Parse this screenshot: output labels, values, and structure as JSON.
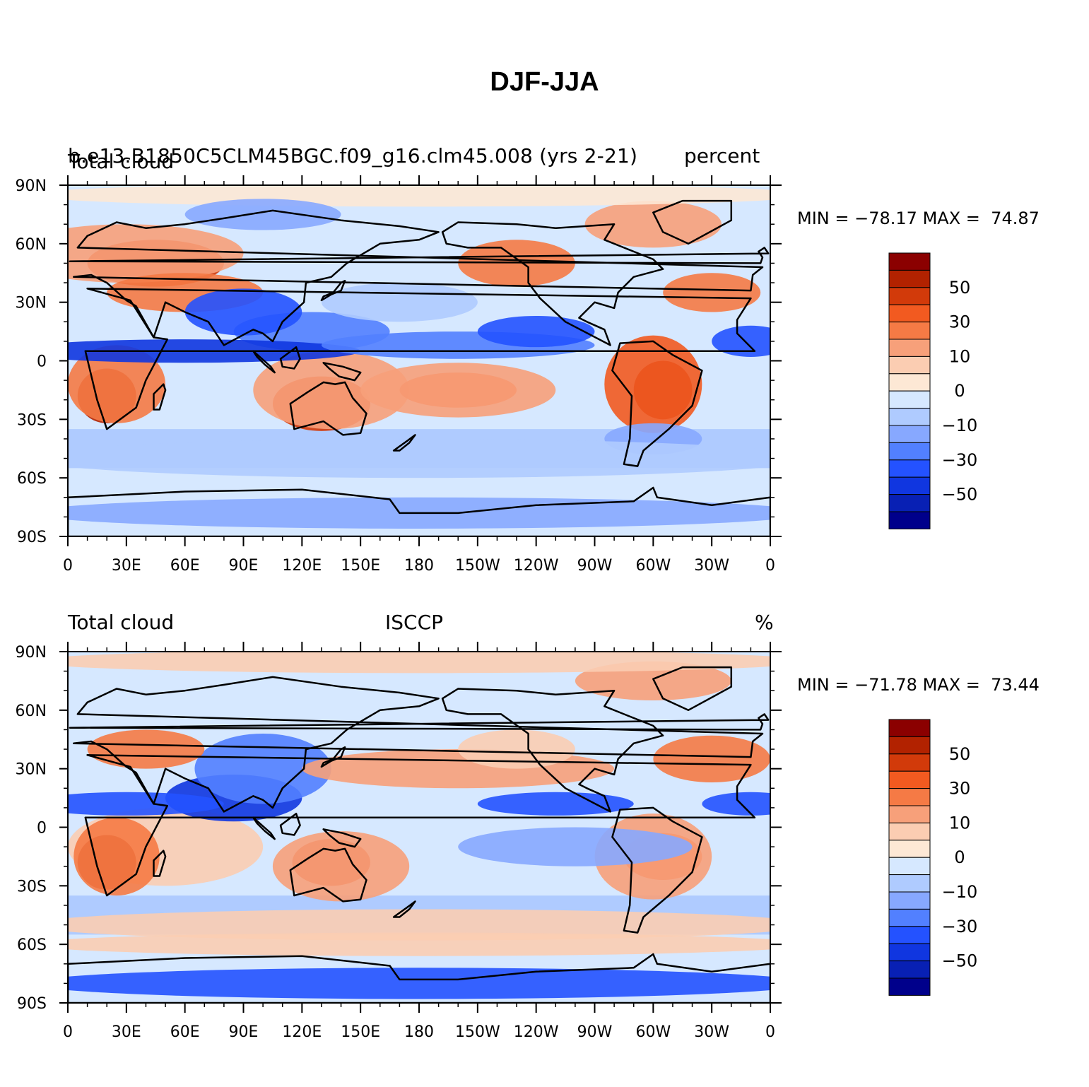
{
  "title": "DJF-JJA",
  "panels": [
    {
      "label_left": "Total cloud",
      "label_center": "b.e13.B1850C5CLM45BGC.f09_g16.clm45.008  (yrs   2-21)",
      "label_right": "percent",
      "min_label": "MIN =",
      "min_value": "−78.17",
      "max_label": "MAX =",
      "max_value": "74.87"
    },
    {
      "label_left": "Total cloud",
      "label_center": "ISCCP",
      "label_right": "%",
      "min_label": "MIN =",
      "min_value": "−71.78",
      "max_label": "MAX =",
      "max_value": "73.44"
    }
  ],
  "map": {
    "lat_ticks": [
      "90N",
      "60N",
      "30N",
      "0",
      "30S",
      "60S",
      "90S"
    ],
    "lon_ticks": [
      "0",
      "30E",
      "60E",
      "90E",
      "120E",
      "150E",
      "180",
      "150W",
      "120W",
      "90W",
      "60W",
      "30W",
      "0"
    ]
  },
  "colorbar": {
    "labels": [
      "50",
      "30",
      "10",
      "0",
      "−10",
      "−30",
      "−50"
    ],
    "colors": [
      "#8b0000",
      "#b22200",
      "#d23a0a",
      "#f25a20",
      "#f57a45",
      "#f7a07a",
      "#fbcdb2",
      "#fde8d5",
      "#d6e8ff",
      "#afcbff",
      "#87a8ff",
      "#5280ff",
      "#2452ff",
      "#1036e0",
      "#0820b4",
      "#00008b"
    ]
  }
}
